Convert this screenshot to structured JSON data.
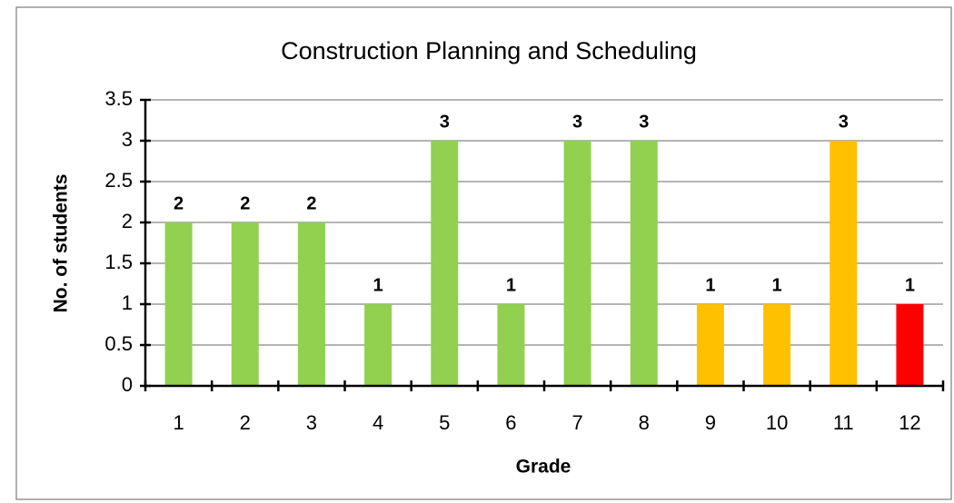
{
  "chart_data": {
    "type": "bar",
    "title": "Construction Planning and Scheduling",
    "x_label": "Grade",
    "y_label": "No. of students",
    "categories": [
      "1",
      "2",
      "3",
      "4",
      "5",
      "6",
      "7",
      "8",
      "9",
      "10",
      "11",
      "12"
    ],
    "values": [
      2,
      2,
      2,
      1,
      3,
      1,
      3,
      3,
      1,
      1,
      3,
      1
    ],
    "colors": [
      "#92d050",
      "#92d050",
      "#92d050",
      "#92d050",
      "#92d050",
      "#92d050",
      "#92d050",
      "#92d050",
      "#ffc000",
      "#ffc000",
      "#ffc000",
      "#ff0000"
    ],
    "ylim": [
      0,
      3.5
    ],
    "yticks": [
      0,
      0.5,
      1,
      1.5,
      2,
      2.5,
      3,
      3.5
    ],
    "grid": true
  }
}
